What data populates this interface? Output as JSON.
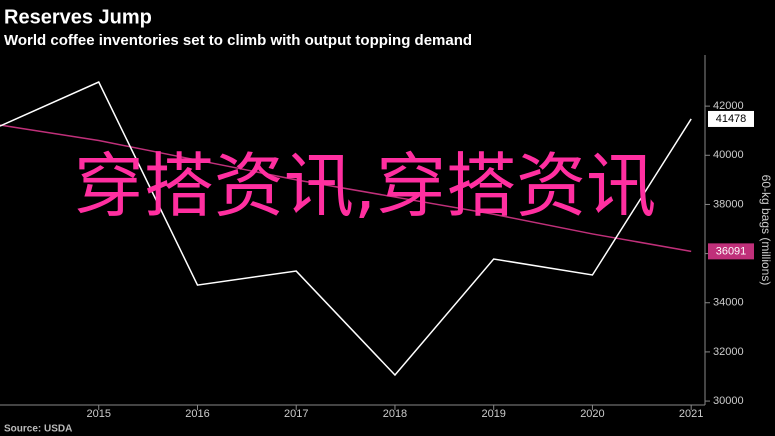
{
  "chart_data": {
    "type": "line",
    "title": "Reserves Jump",
    "subtitle": "World coffee inventories set to climb with output topping demand",
    "y_axis_label": "60-kg bags (millions)",
    "source": "Source: USDA",
    "overlay_text": "穿搭资讯,穿搭资讯",
    "x": [
      2014,
      2015,
      2016,
      2017,
      2018,
      2019,
      2020,
      2021
    ],
    "series": [
      {
        "color": "#ffffff",
        "values": [
          41190,
          42980,
          34720,
          35290,
          31060,
          35780,
          35130,
          41478
        ]
      },
      {
        "color": "#c0307a",
        "values": [
          41230,
          40600,
          39800,
          39000,
          38300,
          37600,
          36800,
          36091
        ]
      }
    ],
    "xlim": [
      2014,
      2021.14
    ],
    "ylim": [
      29840,
      44080
    ],
    "xticks": [
      2015,
      2016,
      2017,
      2018,
      2019,
      2020,
      2021
    ],
    "yticks": [
      30000,
      32000,
      34000,
      36000,
      38000,
      40000,
      42000
    ]
  }
}
